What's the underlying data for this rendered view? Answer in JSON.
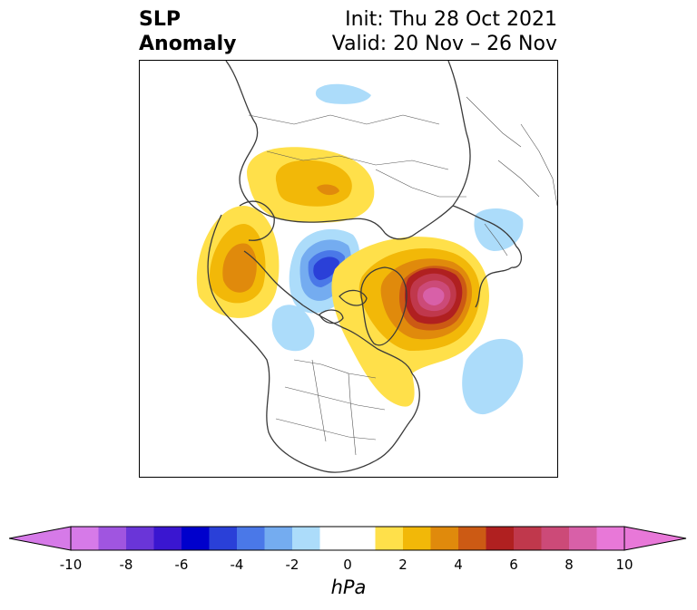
{
  "title": {
    "left_line1": "SLP",
    "left_line2": "Anomaly",
    "right_line1": "Init: Thu 28 Oct 2021",
    "right_line2": "Valid: 20 Nov – 26 Nov"
  },
  "colorbar": {
    "units": "hPa",
    "ticks": [
      "-10",
      "-8",
      "-6",
      "-4",
      "-2",
      "0",
      "2",
      "4",
      "6",
      "8",
      "10"
    ],
    "tick_values": [
      -10,
      -8,
      -6,
      -4,
      -2,
      0,
      2,
      4,
      6,
      8,
      10
    ],
    "levels": [
      -10,
      -9,
      -8,
      -7,
      -6,
      -5,
      -4,
      -3,
      -2,
      -1,
      1,
      2,
      3,
      4,
      5,
      6,
      7,
      8,
      9,
      10
    ],
    "colors": [
      "#d67ae8",
      "#a055e0",
      "#6a35d8",
      "#3a16d0",
      "#0000cc",
      "#2a40d8",
      "#4a78e8",
      "#74acf0",
      "#acdcfa",
      "#ffffff",
      "#ffe04a",
      "#f2b808",
      "#e08a0c",
      "#cc5a14",
      "#b02020",
      "#c0384c",
      "#cc4a78",
      "#d860a8",
      "#e878d8"
    ]
  },
  "anomalies": [
    {
      "name": "high-atlantic-arctic",
      "sign": "positive",
      "peak_hpa": 9
    },
    {
      "name": "high-siberia",
      "sign": "positive",
      "peak_hpa": 3
    },
    {
      "name": "high-alaska-pacific",
      "sign": "positive",
      "peak_hpa": 4
    },
    {
      "name": "low-arctic-ocean",
      "sign": "negative",
      "peak_hpa": -6
    },
    {
      "name": "low-north-atlantic",
      "sign": "negative",
      "peak_hpa": -2
    },
    {
      "name": "low-europe",
      "sign": "negative",
      "peak_hpa": -2
    }
  ]
}
